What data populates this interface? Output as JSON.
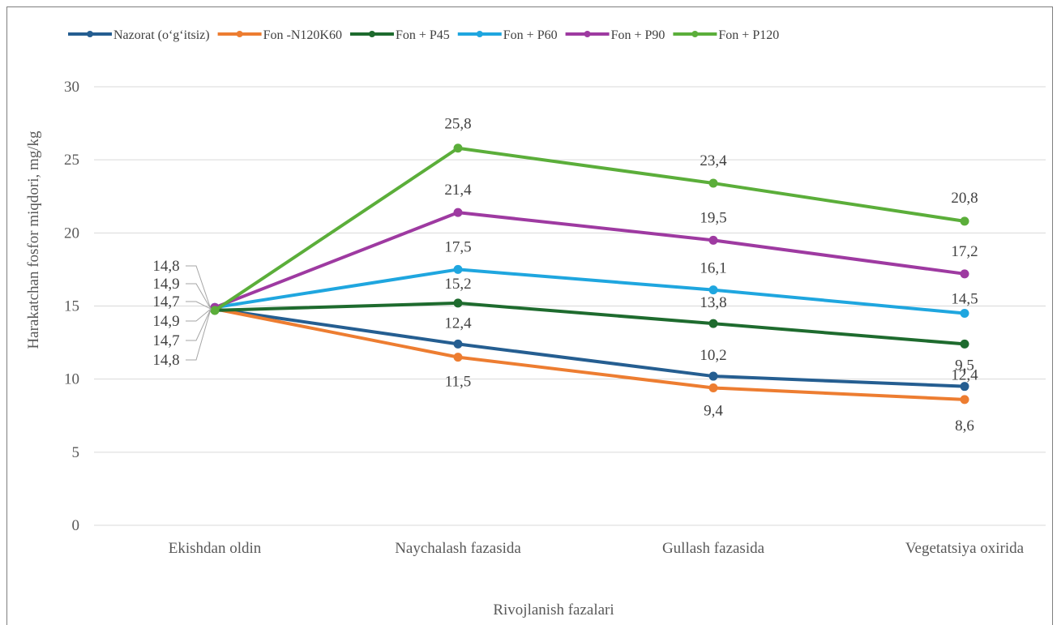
{
  "chart_data": {
    "type": "line",
    "title": "",
    "xlabel": "Rivojlanish fazalari",
    "ylabel": "Harakatchan fosfor miqdori,  mg/kg",
    "categories": [
      "Ekishdan oldin",
      "Naychalash fazasida",
      "Gullash fazasida",
      "Vegetatsiya oxirida"
    ],
    "ylim": [
      0,
      30
    ],
    "yticks": [
      0,
      5,
      10,
      15,
      20,
      25,
      30
    ],
    "grid": true,
    "legend_position": "top",
    "series": [
      {
        "name": "Nazorat (o‘g‘itsiz)",
        "color": "#255e91",
        "values": [
          14.8,
          12.4,
          10.2,
          9.5
        ],
        "labels": [
          "14,8",
          "12,4",
          "10,2",
          "9,5"
        ]
      },
      {
        "name": "Fon -N120K60",
        "color": "#ed7d31",
        "values": [
          14.8,
          11.5,
          9.4,
          8.6
        ],
        "labels": [
          "14,8",
          "11,5",
          "9,4",
          "8,6"
        ]
      },
      {
        "name": "Fon + P45",
        "color": "#1e6b2e",
        "values": [
          14.7,
          15.2,
          13.8,
          12.4
        ],
        "labels": [
          "14,7",
          "15,2",
          "13,8",
          "12,4"
        ]
      },
      {
        "name": "Fon + P60",
        "color": "#1fa6df",
        "values": [
          14.9,
          17.5,
          16.1,
          14.5
        ],
        "labels": [
          "14,9",
          "17,5",
          "16,1",
          "14,5"
        ]
      },
      {
        "name": "Fon + P90",
        "color": "#9e3aa1",
        "values": [
          14.9,
          21.4,
          19.5,
          17.2
        ],
        "labels": [
          "14,9",
          "21,4",
          "19,5",
          "17,2"
        ]
      },
      {
        "name": "Fon + P120",
        "color": "#5bae3a",
        "values": [
          14.7,
          25.8,
          23.4,
          20.8
        ],
        "labels": [
          "14,7",
          "25,8",
          "23,4",
          "20,8"
        ]
      }
    ],
    "first_point_labels": [
      "14,8",
      "14,9",
      "14,7",
      "14,9",
      "14,7",
      "14,8"
    ]
  }
}
